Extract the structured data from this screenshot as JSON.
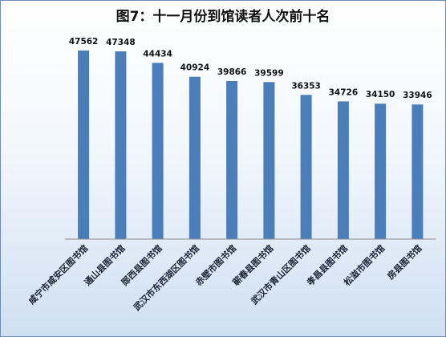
{
  "chart_data": {
    "type": "bar",
    "title": "图7：十一月份到馆读者人次前十名",
    "categories": [
      "咸宁市咸安区图书馆",
      "通山县图书馆",
      "郧西县图书馆",
      "武汉市东西湖区图书馆",
      "赤壁市图书馆",
      "蕲春县图书馆",
      "武汉市青山区图书馆",
      "孝昌县图书馆",
      "松滋市图书馆",
      "房县图书馆"
    ],
    "values": [
      47562,
      47348,
      44434,
      40924,
      39866,
      39599,
      36353,
      34726,
      34150,
      33946
    ],
    "ylim": [
      0,
      52000
    ],
    "grid": false,
    "legend": "none",
    "bar_color": "#4a7ebb",
    "axis_color": "#8c8c8c"
  }
}
